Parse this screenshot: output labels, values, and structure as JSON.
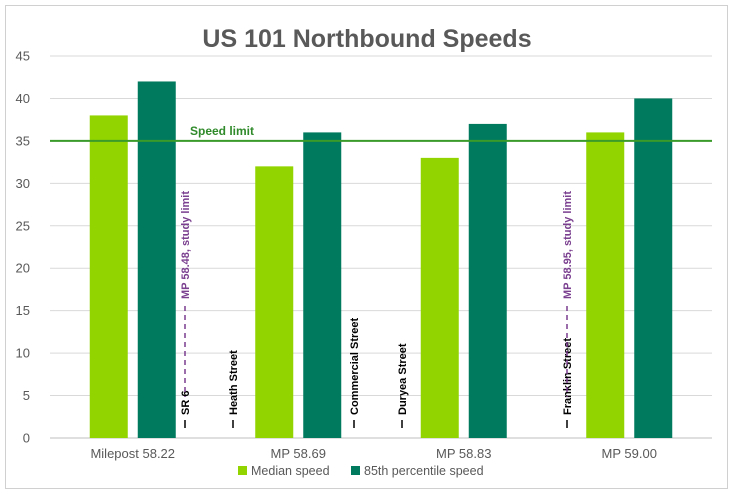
{
  "chart_data": {
    "type": "bar",
    "title": "US 101 Northbound Speeds",
    "xlabel": "",
    "ylabel": "",
    "ylim": [
      0,
      45
    ],
    "yticks": [
      0,
      5,
      10,
      15,
      20,
      25,
      30,
      35,
      40,
      45
    ],
    "grid": true,
    "legend_position": "bottom",
    "categories": [
      "Milepost 58.22",
      "MP 58.69",
      "MP 58.83",
      "MP 59.00"
    ],
    "series": [
      {
        "name": "Median speed",
        "color": "#92d400",
        "values": [
          38,
          32,
          33,
          36
        ]
      },
      {
        "name": "85th percentile speed",
        "color": "#007a5e",
        "values": [
          42,
          36,
          37,
          40
        ]
      }
    ],
    "reference_line": {
      "label": "Speed limit",
      "value": 35,
      "color": "#3a9a2a"
    },
    "annotations": [
      {
        "text": "SR 6",
        "style": "solid",
        "color": "#000000"
      },
      {
        "text": "MP 58.48, study limit",
        "style": "dashed",
        "color": "#7a3f8f"
      },
      {
        "text": "Heath Street",
        "style": "solid",
        "color": "#000000"
      },
      {
        "text": "Commercial Street",
        "style": "solid",
        "color": "#000000"
      },
      {
        "text": "Duryea Street",
        "style": "solid",
        "color": "#000000"
      },
      {
        "text": "Franklin Street",
        "style": "solid",
        "color": "#000000"
      },
      {
        "text": "MP 58.95, study limit",
        "style": "dashed",
        "color": "#7a3f8f"
      }
    ]
  }
}
